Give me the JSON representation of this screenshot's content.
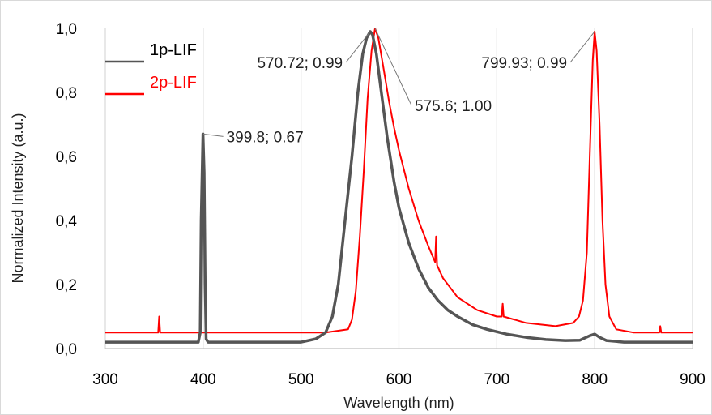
{
  "chart_data": {
    "type": "line",
    "xlabel": "Wavelength (nm)",
    "ylabel": "Normalized Intensity (a.u.)",
    "xlim": [
      300,
      900
    ],
    "ylim": [
      0,
      1.0
    ],
    "x_ticks": [
      "300",
      "400",
      "500",
      "600",
      "700",
      "800",
      "900"
    ],
    "y_ticks": [
      "0,0",
      "0,2",
      "0,4",
      "0,6",
      "0,8",
      "1,0"
    ],
    "grid": "vertical",
    "legend_position": "top-left",
    "series": [
      {
        "name": "1p-LIF",
        "color": "#555555",
        "points": [
          [
            300,
            0.02
          ],
          [
            355,
            0.02
          ],
          [
            356,
            0.02
          ],
          [
            395,
            0.02
          ],
          [
            397,
            0.05
          ],
          [
            398,
            0.4
          ],
          [
            399.8,
            0.67
          ],
          [
            401,
            0.55
          ],
          [
            402,
            0.2
          ],
          [
            403,
            0.03
          ],
          [
            405,
            0.02
          ],
          [
            450,
            0.02
          ],
          [
            500,
            0.02
          ],
          [
            515,
            0.03
          ],
          [
            525,
            0.05
          ],
          [
            532,
            0.1
          ],
          [
            538,
            0.2
          ],
          [
            545,
            0.4
          ],
          [
            552,
            0.6
          ],
          [
            558,
            0.8
          ],
          [
            563,
            0.92
          ],
          [
            567,
            0.97
          ],
          [
            570.72,
            0.99
          ],
          [
            573,
            0.98
          ],
          [
            577,
            0.92
          ],
          [
            582,
            0.8
          ],
          [
            588,
            0.66
          ],
          [
            595,
            0.52
          ],
          [
            600,
            0.44
          ],
          [
            610,
            0.33
          ],
          [
            620,
            0.25
          ],
          [
            630,
            0.19
          ],
          [
            640,
            0.15
          ],
          [
            650,
            0.12
          ],
          [
            660,
            0.1
          ],
          [
            675,
            0.075
          ],
          [
            690,
            0.06
          ],
          [
            710,
            0.045
          ],
          [
            730,
            0.035
          ],
          [
            750,
            0.028
          ],
          [
            770,
            0.025
          ],
          [
            785,
            0.026
          ],
          [
            795,
            0.04
          ],
          [
            800,
            0.045
          ],
          [
            805,
            0.035
          ],
          [
            812,
            0.025
          ],
          [
            830,
            0.02
          ],
          [
            860,
            0.02
          ],
          [
            900,
            0.02
          ]
        ]
      },
      {
        "name": "2p-LIF",
        "color": "#ff0000",
        "points": [
          [
            300,
            0.05
          ],
          [
            354,
            0.05
          ],
          [
            355,
            0.1
          ],
          [
            356,
            0.05
          ],
          [
            400,
            0.05
          ],
          [
            450,
            0.05
          ],
          [
            500,
            0.05
          ],
          [
            525,
            0.05
          ],
          [
            548,
            0.06
          ],
          [
            552,
            0.09
          ],
          [
            556,
            0.18
          ],
          [
            560,
            0.35
          ],
          [
            564,
            0.55
          ],
          [
            568,
            0.78
          ],
          [
            572,
            0.93
          ],
          [
            575.6,
            1.0
          ],
          [
            579,
            0.97
          ],
          [
            584,
            0.88
          ],
          [
            590,
            0.77
          ],
          [
            595,
            0.69
          ],
          [
            600,
            0.62
          ],
          [
            610,
            0.5
          ],
          [
            620,
            0.4
          ],
          [
            630,
            0.32
          ],
          [
            637,
            0.27
          ],
          [
            638,
            0.35
          ],
          [
            639,
            0.26
          ],
          [
            645,
            0.22
          ],
          [
            660,
            0.16
          ],
          [
            680,
            0.12
          ],
          [
            700,
            0.1
          ],
          [
            705,
            0.1
          ],
          [
            706,
            0.14
          ],
          [
            707,
            0.1
          ],
          [
            730,
            0.08
          ],
          [
            760,
            0.07
          ],
          [
            778,
            0.08
          ],
          [
            784,
            0.1
          ],
          [
            788,
            0.15
          ],
          [
            792,
            0.3
          ],
          [
            795,
            0.6
          ],
          [
            798,
            0.9
          ],
          [
            799.93,
            0.99
          ],
          [
            802,
            0.93
          ],
          [
            805,
            0.7
          ],
          [
            808,
            0.4
          ],
          [
            811,
            0.2
          ],
          [
            815,
            0.1
          ],
          [
            822,
            0.06
          ],
          [
            840,
            0.05
          ],
          [
            866,
            0.05
          ],
          [
            867,
            0.07
          ],
          [
            868,
            0.05
          ],
          [
            900,
            0.05
          ]
        ]
      }
    ],
    "annotations": [
      {
        "text": "399.8; 0.67",
        "x": 399.8,
        "y": 0.67,
        "side": "right"
      },
      {
        "text": "570.72; 0.99",
        "x": 570.72,
        "y": 0.99,
        "side": "left"
      },
      {
        "text": "575.6; 1.00",
        "x": 575.6,
        "y": 1.0,
        "side": "right-down"
      },
      {
        "text": "799.93; 0.99",
        "x": 799.93,
        "y": 0.99,
        "side": "left"
      }
    ]
  }
}
